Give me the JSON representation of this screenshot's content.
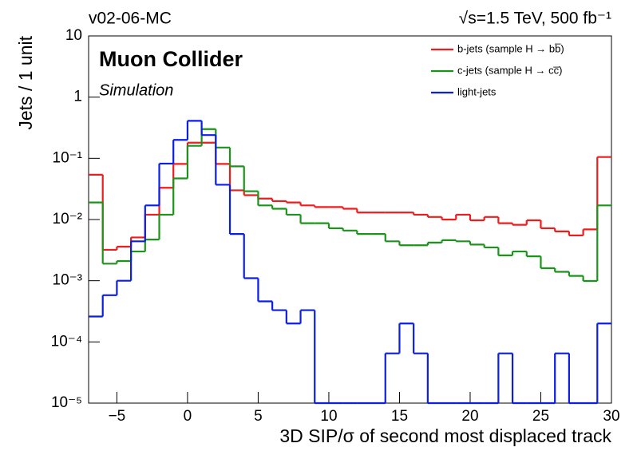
{
  "chart_data": {
    "type": "histogram",
    "title": "Muon Collider",
    "subtitle": "Simulation",
    "annotations": [
      "v02-06-MC",
      "√s=1.5 TeV, 500 fb⁻¹"
    ],
    "x_label": "3D SIP/σ of second most displaced track",
    "y_label": "Jets / 1 unit",
    "log_y": true,
    "legend": "upper right",
    "bins": [
      -7,
      -6,
      -5,
      -4,
      -3,
      -2,
      -1,
      0,
      1,
      2,
      3,
      4,
      5,
      6,
      7,
      8,
      9,
      10,
      11,
      12,
      13,
      14,
      15,
      16,
      17,
      18,
      19,
      20,
      21,
      22,
      23,
      24,
      25,
      26,
      27,
      28,
      29,
      30
    ],
    "series": [
      {
        "name": "b-jets (sample H → bb̅)",
        "color": "#ee1c1c",
        "values": [
          0.054,
          0.0032,
          0.0036,
          0.0051,
          0.012,
          0.033,
          0.081,
          0.18,
          0.18,
          0.081,
          0.03,
          0.025,
          0.022,
          0.02,
          0.019,
          0.017,
          0.016,
          0.016,
          0.015,
          0.013,
          0.013,
          0.013,
          0.013,
          0.012,
          0.011,
          0.01,
          0.012,
          0.0097,
          0.011,
          0.0087,
          0.0082,
          0.0097,
          0.0072,
          0.0064,
          0.0055,
          0.0069,
          0.105
        ]
      },
      {
        "name": "c-jets (sample H → cc̅)",
        "color": "#1a951a",
        "values": [
          0.019,
          0.0019,
          0.0021,
          0.003,
          0.0047,
          0.012,
          0.047,
          0.16,
          0.3,
          0.15,
          0.074,
          0.029,
          0.017,
          0.015,
          0.012,
          0.0087,
          0.0087,
          0.0072,
          0.0066,
          0.0058,
          0.0058,
          0.0044,
          0.0038,
          0.0038,
          0.0042,
          0.0046,
          0.0044,
          0.0039,
          0.0035,
          0.0026,
          0.003,
          0.0025,
          0.0016,
          0.0014,
          0.0012,
          0.00099,
          0.017
        ]
      },
      {
        "name": "light-jets",
        "color": "#0a1ee6",
        "values": [
          0.00026,
          0.00058,
          0.001,
          0.0044,
          0.017,
          0.082,
          0.2,
          0.41,
          0.24,
          0.037,
          0.0058,
          0.0011,
          0.00046,
          0.00033,
          0.0002,
          0.00033,
          0,
          0,
          0,
          0,
          0,
          6.5e-05,
          0.0002,
          6.5e-05,
          0,
          0,
          0,
          0,
          0,
          6.5e-05,
          0,
          0,
          0,
          6.5e-05,
          0,
          0,
          0.0002
        ]
      }
    ],
    "xlim": [
      -7,
      30
    ],
    "xticks": [
      {
        "value": -5,
        "label": "−5"
      },
      0,
      5,
      10,
      15,
      20,
      25,
      30
    ],
    "ylim": [
      1e-05,
      10
    ],
    "yticks": [
      {
        "value": 1e-05,
        "label": "10⁻⁵"
      },
      {
        "value": 0.0001,
        "label": "10⁻⁴"
      },
      {
        "value": 0.001,
        "label": "10⁻³"
      },
      {
        "value": 0.01,
        "label": "10⁻²"
      },
      {
        "value": 0.1,
        "label": "10⁻¹"
      },
      1,
      10
    ]
  }
}
